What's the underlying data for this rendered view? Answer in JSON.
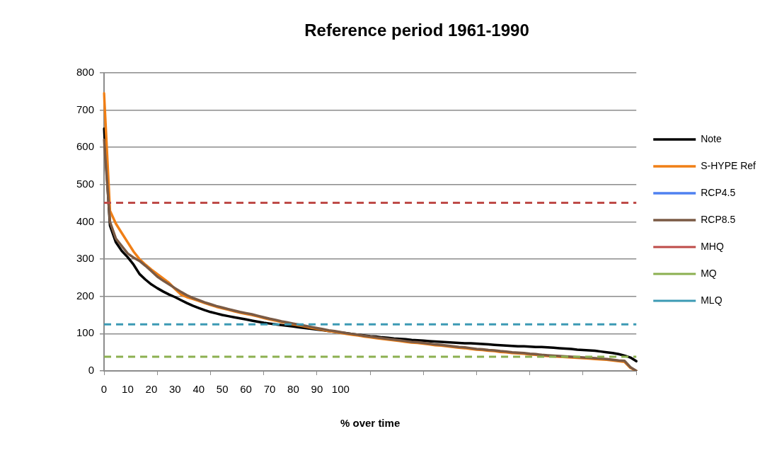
{
  "chart_data": {
    "type": "line",
    "title": "Reference period 1961-1990",
    "xlabel": "% over time",
    "categories": [
      "0",
      null,
      null,
      null,
      "10",
      null,
      null,
      null,
      "20",
      null,
      null,
      null,
      "30",
      null,
      null,
      null,
      "40",
      null,
      null,
      null,
      "50",
      null,
      null,
      null,
      "60",
      null,
      null,
      null,
      "70",
      null,
      null,
      null,
      "80",
      null,
      null,
      null,
      "90",
      null,
      null,
      null,
      "100",
      null,
      null,
      null,
      null,
      null,
      null,
      null,
      null,
      null,
      null,
      null,
      null,
      null,
      null,
      null,
      null,
      null,
      null,
      null,
      null,
      null,
      null,
      null,
      null,
      null,
      null,
      null,
      null,
      null,
      null,
      null,
      null,
      null,
      null,
      null,
      null,
      null,
      null,
      null,
      null,
      null,
      null,
      null,
      null,
      null,
      null,
      null,
      null,
      null,
      null
    ],
    "series": [
      {
        "name": "Note",
        "color": "#000000",
        "values": [
          650,
          390,
          345,
          322,
          305,
          285,
          260,
          245,
          232,
          222,
          213,
          205,
          198,
          190,
          182,
          175,
          169,
          163,
          158,
          154,
          150,
          147,
          144,
          141,
          138,
          135,
          132,
          129,
          127,
          125,
          123,
          121,
          119,
          117,
          115,
          113,
          111,
          109,
          107,
          105,
          103,
          101,
          99,
          97,
          95,
          93,
          92,
          90,
          89,
          87,
          86,
          85,
          83,
          82,
          81,
          80,
          79,
          78,
          77,
          76,
          75,
          74,
          74,
          73,
          72,
          71,
          70,
          69,
          68,
          67,
          66,
          66,
          65,
          64,
          64,
          63,
          62,
          61,
          60,
          59,
          57,
          56,
          55,
          54,
          52,
          50,
          48,
          45,
          41,
          36,
          26
        ]
      },
      {
        "name": "S-HYPE Ref",
        "color": "#f07f16",
        "values": [
          745,
          430,
          395,
          370,
          345,
          320,
          300,
          285,
          272,
          260,
          248,
          236,
          220,
          205,
          198,
          193,
          188,
          182,
          177,
          172,
          168,
          164,
          160,
          156,
          153,
          150,
          146,
          142,
          138,
          135,
          131,
          128,
          125,
          122,
          119,
          116,
          113,
          110,
          107,
          105,
          102,
          99,
          97,
          95,
          92,
          90,
          88,
          86,
          84,
          82,
          80,
          78,
          76,
          75,
          73,
          71,
          69,
          68,
          66,
          64,
          62,
          61,
          59,
          57,
          56,
          54,
          53,
          51,
          50,
          48,
          47,
          46,
          44,
          43,
          41,
          40,
          39,
          38,
          37,
          36,
          35,
          34,
          33,
          32,
          31,
          30,
          28,
          26,
          24,
          8,
          0
        ]
      },
      {
        "name": "RCP4.5",
        "color": "#4f81f0",
        "values": [
          null,
          null,
          null,
          null,
          null,
          null,
          null,
          null,
          null,
          null,
          null,
          null,
          null,
          null,
          null,
          null,
          null,
          null,
          null,
          null,
          null,
          null,
          null,
          null,
          null,
          null,
          null,
          null,
          null,
          null,
          null,
          null,
          null,
          null,
          null,
          null,
          null,
          null,
          null,
          null,
          null,
          null,
          null,
          null,
          null,
          null,
          null,
          null,
          null,
          null,
          null,
          null,
          null,
          null,
          null,
          null,
          null,
          null,
          null,
          null,
          null,
          null,
          null,
          null,
          null,
          null,
          null,
          null,
          null,
          null,
          null,
          null,
          null,
          null,
          null,
          null,
          null,
          null,
          null,
          null,
          null,
          null,
          null,
          null,
          null,
          null,
          null,
          null,
          null,
          null,
          null
        ]
      },
      {
        "name": "RCP8.5",
        "color": "#7a5a44",
        "values": [
          620,
          400,
          355,
          335,
          315,
          304,
          295,
          282,
          268,
          253,
          242,
          232,
          222,
          212,
          203,
          196,
          190,
          184,
          179,
          174,
          170,
          166,
          162,
          158,
          155,
          152,
          148,
          144,
          140,
          137,
          133,
          130,
          127,
          124,
          121,
          118,
          115,
          112,
          109,
          107,
          104,
          101,
          99,
          97,
          94,
          92,
          90,
          88,
          86,
          84,
          82,
          80,
          78,
          77,
          75,
          73,
          71,
          70,
          68,
          66,
          64,
          63,
          61,
          59,
          58,
          56,
          55,
          53,
          52,
          50,
          49,
          48,
          46,
          45,
          43,
          42,
          41,
          40,
          39,
          38,
          37,
          36,
          35,
          34,
          33,
          32,
          30,
          28,
          27,
          10,
          0
        ]
      }
    ],
    "ref_lines": [
      {
        "axis": "y",
        "value": 451,
        "label": "MHQ",
        "color": "#be4b48",
        "line_style": "dashed"
      },
      {
        "axis": "y",
        "value": 38,
        "label": "MQ",
        "color": "#8cb050",
        "line_style": "dashed"
      },
      {
        "axis": "y",
        "value": 125,
        "label": "MLQ",
        "color": "#3c9ab4",
        "line_style": "dashed"
      }
    ],
    "ylim": [
      0,
      800
    ],
    "yticks": [
      0,
      100,
      200,
      300,
      400,
      500,
      600,
      700,
      800
    ],
    "grid": "y",
    "legend": "right",
    "marker": "none",
    "line_style": "solid"
  }
}
